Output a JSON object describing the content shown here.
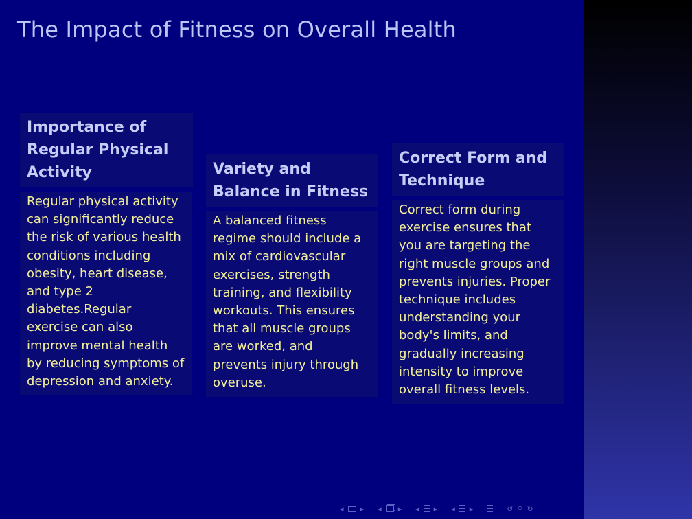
{
  "slide": {
    "title": "The Impact of Fitness on Overall Health"
  },
  "blocks": [
    {
      "heading": "Importance of Regular Physical Activity",
      "body": "Regular physical activity can significantly reduce the risk of various health conditions including obesity, heart disease, and type 2 diabetes.Regular exercise can also improve mental health by reducing symptoms of depression and anxiety."
    },
    {
      "heading": "Variety and Balance in Fitness",
      "body": "A balanced fitness regime should include a mix of cardiovascular exercises, strength training, and flexibility workouts.  This ensures that all muscle groups are worked, and prevents injury through overuse."
    },
    {
      "heading": "Correct Form and Technique",
      "body": "Correct form during exercise ensures that you are targeting the right muscle groups and prevents injuries. Proper technique includes understanding your body's limits, and gradually increasing intensity to improve overall fitness levels."
    }
  ],
  "navigation": {
    "icons": [
      "arrow-left-icon",
      "slide-icon",
      "arrow-right-icon",
      "frame-icon",
      "section-icon",
      "subsection-icon",
      "toc-icon",
      "search-icon",
      "back-icon",
      "forward-icon"
    ],
    "color": "#5a63c4"
  }
}
